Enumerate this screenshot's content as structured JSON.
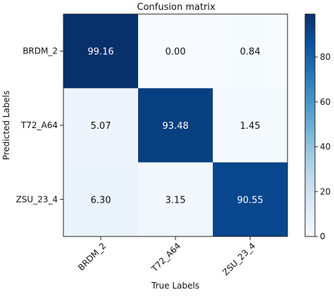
{
  "chart_data": {
    "type": "heatmap",
    "title": "Confusion matrix",
    "xlabel": "True Labels",
    "ylabel": "Predicted Labels",
    "row_labels": [
      "BRDM_2",
      "T72_A64",
      "ZSU_23_4"
    ],
    "col_labels": [
      "BRDM_2",
      "T72_A64",
      "ZSU_23_4"
    ],
    "values": [
      [
        99.16,
        0.0,
        0.84
      ],
      [
        5.07,
        93.48,
        1.45
      ],
      [
        6.3,
        3.15,
        90.55
      ]
    ],
    "value_format": "2 decimals",
    "colormap": "Blues",
    "colorbar": {
      "range": [
        0,
        99.16
      ],
      "ticks": [
        0,
        20,
        40,
        60,
        80
      ]
    },
    "grid": false
  }
}
